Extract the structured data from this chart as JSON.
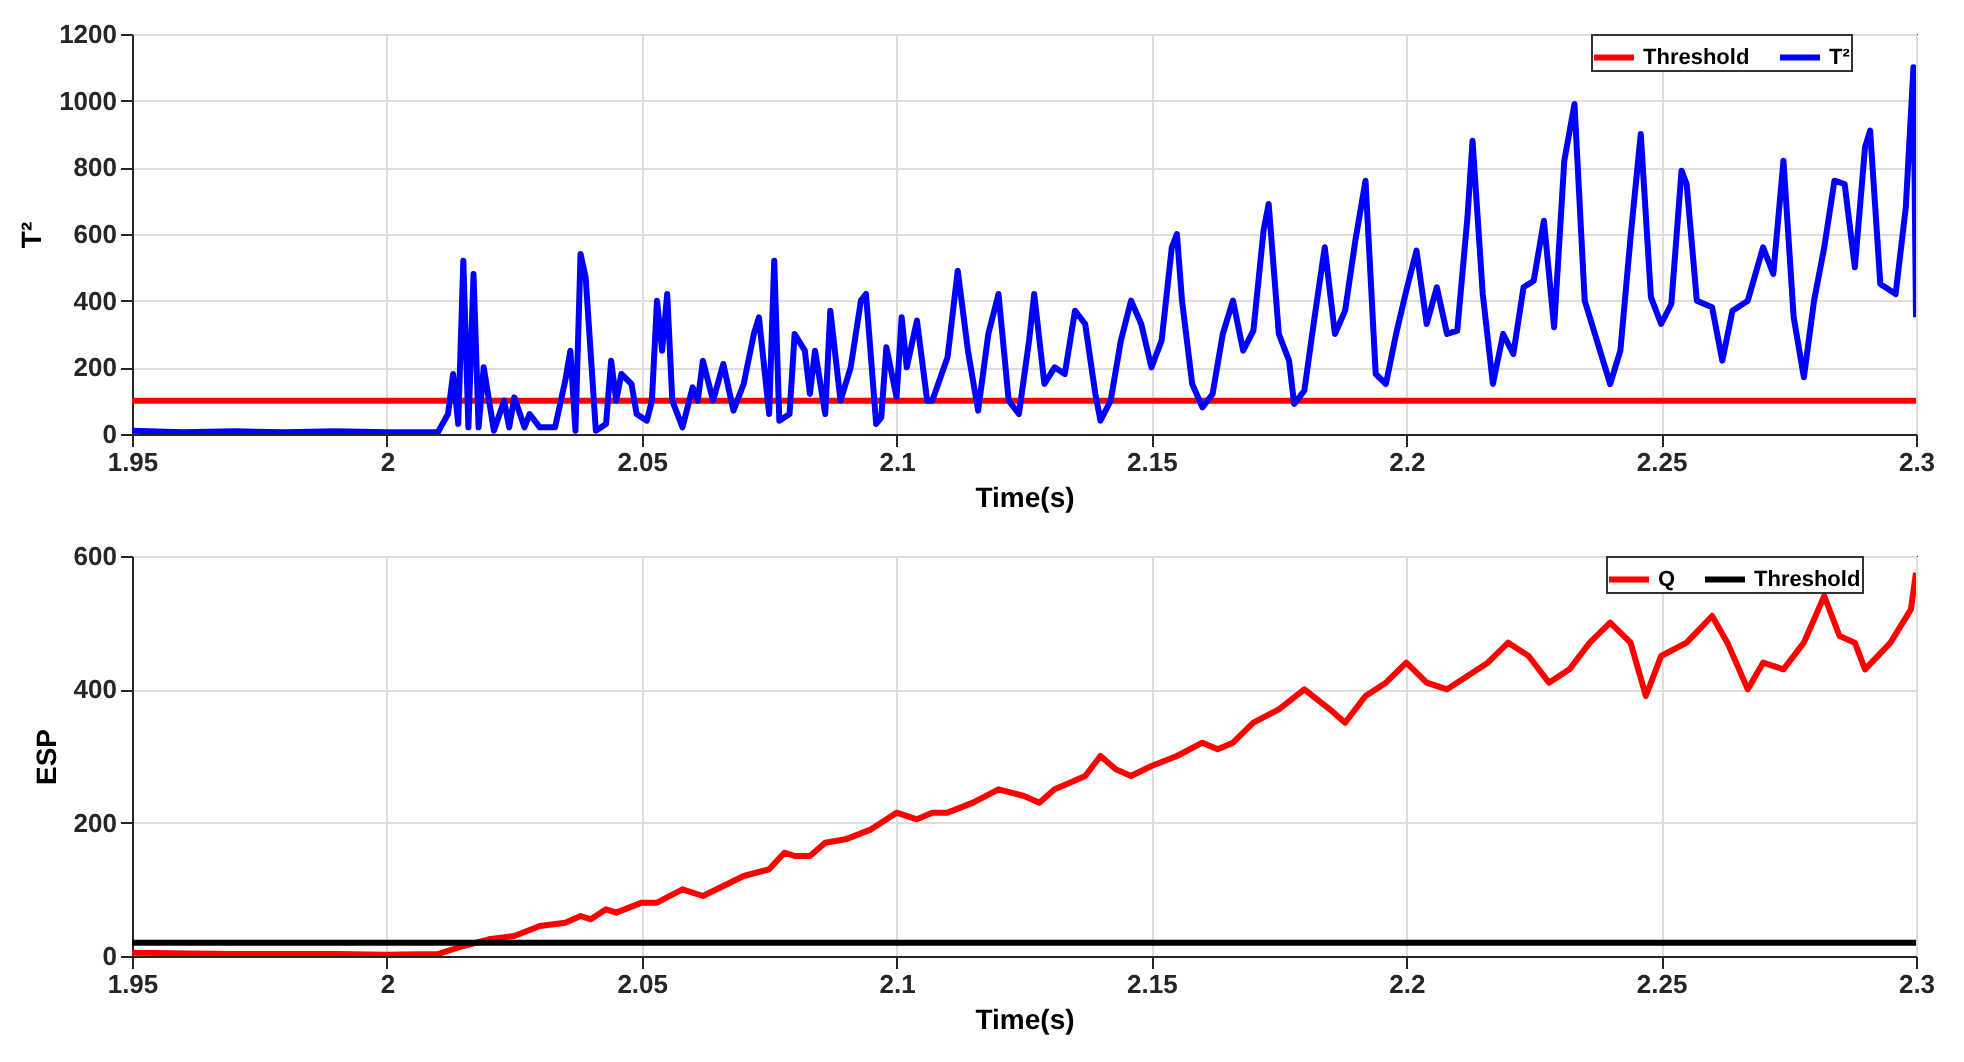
{
  "chart_data": [
    {
      "type": "line",
      "xlabel": "Time(s)",
      "ylabel": "T²",
      "xlim": [
        1.95,
        2.3
      ],
      "xticks": [
        1.95,
        2,
        2.05,
        2.1,
        2.15,
        2.2,
        2.25,
        2.3
      ],
      "ylim": [
        0,
        1200
      ],
      "yticks": [
        0,
        200,
        400,
        600,
        800,
        1000,
        1200
      ],
      "grid": true,
      "legend": "top right",
      "line_style": "solid",
      "marker": "none",
      "series": [
        {
          "name": "Threshold",
          "color": "#ff0000",
          "x": [
            1.95,
            2.3
          ],
          "values": [
            100,
            100
          ]
        },
        {
          "name": "T²",
          "color": "#0000ff",
          "x": [
            1.95,
            1.96,
            1.97,
            1.98,
            1.99,
            2.0,
            2.01,
            2.012,
            2.013,
            2.014,
            2.015,
            2.016,
            2.017,
            2.018,
            2.019,
            2.021,
            2.023,
            2.024,
            2.025,
            2.027,
            2.028,
            2.03,
            2.033,
            2.035,
            2.036,
            2.037,
            2.038,
            2.039,
            2.041,
            2.043,
            2.044,
            2.045,
            2.046,
            2.048,
            2.049,
            2.051,
            2.052,
            2.053,
            2.054,
            2.055,
            2.056,
            2.058,
            2.06,
            2.061,
            2.062,
            2.064,
            2.066,
            2.068,
            2.07,
            2.072,
            2.073,
            2.075,
            2.076,
            2.077,
            2.079,
            2.08,
            2.082,
            2.083,
            2.084,
            2.086,
            2.087,
            2.089,
            2.091,
            2.093,
            2.094,
            2.096,
            2.097,
            2.098,
            2.1,
            2.101,
            2.102,
            2.104,
            2.106,
            2.107,
            2.11,
            2.112,
            2.114,
            2.116,
            2.118,
            2.12,
            2.122,
            2.124,
            2.126,
            2.127,
            2.129,
            2.131,
            2.133,
            2.135,
            2.137,
            2.139,
            2.14,
            2.142,
            2.144,
            2.146,
            2.148,
            2.15,
            2.152,
            2.154,
            2.155,
            2.156,
            2.158,
            2.16,
            2.162,
            2.164,
            2.166,
            2.168,
            2.17,
            2.172,
            2.173,
            2.175,
            2.177,
            2.178,
            2.18,
            2.182,
            2.184,
            2.186,
            2.188,
            2.19,
            2.192,
            2.194,
            2.196,
            2.198,
            2.2,
            2.202,
            2.204,
            2.206,
            2.208,
            2.21,
            2.212,
            2.213,
            2.215,
            2.217,
            2.219,
            2.221,
            2.223,
            2.225,
            2.227,
            2.229,
            2.231,
            2.233,
            2.235,
            2.238,
            2.24,
            2.242,
            2.244,
            2.246,
            2.248,
            2.25,
            2.252,
            2.254,
            2.255,
            2.257,
            2.26,
            2.262,
            2.264,
            2.267,
            2.27,
            2.272,
            2.274,
            2.276,
            2.278,
            2.28,
            2.282,
            2.284,
            2.286,
            2.288,
            2.29,
            2.291,
            2.293,
            2.296,
            2.298,
            2.2995,
            2.3
          ],
          "values": [
            10,
            5,
            8,
            5,
            8,
            5,
            5,
            60,
            180,
            30,
            520,
            20,
            480,
            20,
            200,
            10,
            100,
            20,
            110,
            20,
            60,
            20,
            20,
            160,
            250,
            10,
            540,
            470,
            10,
            30,
            220,
            100,
            180,
            150,
            60,
            40,
            100,
            400,
            250,
            420,
            100,
            20,
            140,
            100,
            220,
            100,
            210,
            70,
            150,
            300,
            350,
            60,
            520,
            40,
            60,
            300,
            250,
            120,
            250,
            60,
            370,
            100,
            200,
            400,
            420,
            30,
            50,
            260,
            110,
            350,
            200,
            340,
            100,
            100,
            230,
            490,
            250,
            70,
            300,
            420,
            100,
            60,
            280,
            420,
            150,
            200,
            180,
            370,
            330,
            120,
            40,
            100,
            280,
            400,
            330,
            200,
            280,
            560,
            600,
            400,
            150,
            80,
            120,
            300,
            400,
            250,
            310,
            610,
            690,
            300,
            220,
            90,
            130,
            350,
            560,
            300,
            370,
            580,
            760,
            180,
            150,
            300,
            430,
            550,
            330,
            440,
            300,
            310,
            650,
            880,
            420,
            150,
            300,
            240,
            440,
            460,
            640,
            320,
            820,
            990,
            400,
            250,
            150,
            250,
            590,
            900,
            410,
            330,
            390,
            790,
            750,
            400,
            380,
            220,
            370,
            400,
            560,
            480,
            820,
            350,
            170,
            400,
            560,
            760,
            750,
            500,
            860,
            910,
            450,
            420,
            680,
            1100,
            350
          ]
        }
      ]
    },
    {
      "type": "line",
      "xlabel": "Time(s)",
      "ylabel": "ESP",
      "xlim": [
        1.95,
        2.3
      ],
      "xticks": [
        1.95,
        2,
        2.05,
        2.1,
        2.15,
        2.2,
        2.25,
        2.3
      ],
      "ylim": [
        0,
        600
      ],
      "yticks": [
        0,
        200,
        400,
        600
      ],
      "grid": true,
      "legend": "top right",
      "line_style": "solid",
      "marker": "none",
      "series": [
        {
          "name": "Q",
          "color": "#ff0000",
          "x": [
            1.95,
            1.97,
            1.99,
            2.0,
            2.01,
            2.015,
            2.02,
            2.025,
            2.03,
            2.035,
            2.038,
            2.04,
            2.043,
            2.045,
            2.05,
            2.053,
            2.058,
            2.062,
            2.066,
            2.07,
            2.075,
            2.078,
            2.08,
            2.083,
            2.086,
            2.09,
            2.095,
            2.1,
            2.104,
            2.107,
            2.11,
            2.115,
            2.12,
            2.125,
            2.128,
            2.131,
            2.134,
            2.137,
            2.14,
            2.143,
            2.146,
            2.15,
            2.155,
            2.16,
            2.163,
            2.166,
            2.17,
            2.175,
            2.18,
            2.185,
            2.188,
            2.192,
            2.196,
            2.2,
            2.204,
            2.208,
            2.212,
            2.216,
            2.22,
            2.224,
            2.228,
            2.232,
            2.236,
            2.24,
            2.244,
            2.247,
            2.25,
            2.255,
            2.26,
            2.263,
            2.267,
            2.27,
            2.274,
            2.278,
            2.282,
            2.285,
            2.288,
            2.29,
            2.295,
            2.299,
            2.3
          ],
          "values": [
            5,
            3,
            3,
            2,
            3,
            15,
            25,
            30,
            45,
            50,
            60,
            55,
            70,
            65,
            80,
            80,
            100,
            90,
            105,
            120,
            130,
            155,
            150,
            150,
            170,
            175,
            190,
            215,
            205,
            215,
            215,
            230,
            250,
            240,
            230,
            250,
            260,
            270,
            300,
            280,
            270,
            285,
            300,
            320,
            310,
            320,
            350,
            370,
            400,
            370,
            350,
            390,
            410,
            440,
            410,
            400,
            420,
            440,
            470,
            450,
            410,
            430,
            470,
            500,
            470,
            390,
            450,
            470,
            510,
            470,
            400,
            440,
            430,
            470,
            540,
            480,
            470,
            430,
            470,
            520,
            575
          ]
        },
        {
          "name": "Threshold",
          "color": "#000000",
          "x": [
            1.95,
            2.3
          ],
          "values": [
            20,
            20
          ]
        }
      ]
    }
  ]
}
